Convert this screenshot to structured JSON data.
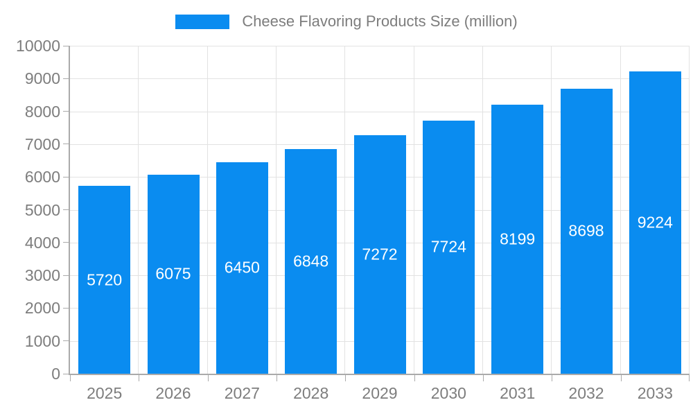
{
  "legend": {
    "label": "Cheese Flavoring Products Size (million)"
  },
  "chart_data": {
    "type": "bar",
    "title": "Cheese Flavoring Products Size (million)",
    "categories": [
      "2025",
      "2026",
      "2027",
      "2028",
      "2029",
      "2030",
      "2031",
      "2032",
      "2033"
    ],
    "values": [
      5720,
      6075,
      6450,
      6848,
      7272,
      7724,
      8199,
      8698,
      9224
    ],
    "value_labels": [
      "5720",
      "6075",
      "6450",
      "6848",
      "7272",
      "7724",
      "8199",
      "8698",
      "9224"
    ],
    "xlabel": "",
    "ylabel": "",
    "ylim": [
      0,
      10000
    ],
    "yticks": [
      0,
      1000,
      2000,
      3000,
      4000,
      5000,
      6000,
      7000,
      8000,
      9000,
      10000
    ],
    "grid": true,
    "legend_position": "top",
    "colors": {
      "bar": "#0a8cf0",
      "grid": "#e2e2e2",
      "axis": "#aaaaaa",
      "text": "#7d7d7d",
      "value_label": "#ffffff"
    }
  }
}
